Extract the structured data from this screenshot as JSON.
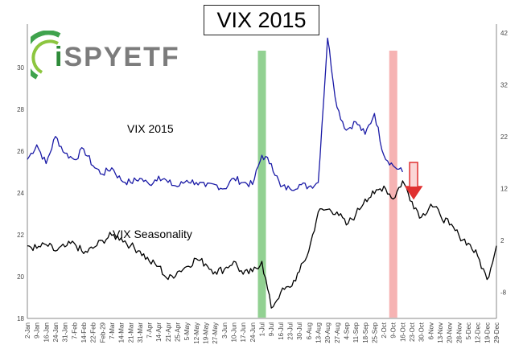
{
  "title": "VIX 2015",
  "logo": {
    "text_prefix": "i",
    "text_main": "SPYETF"
  },
  "colors": {
    "vix2015": "#1a1aa6",
    "seasonality": "#000000",
    "green_band": "#7fc97f",
    "red_band": "#f4a6a6",
    "arrow": "#e03030"
  },
  "chart_data": {
    "type": "line",
    "title": "VIX 2015",
    "x_labels": [
      "2-Jan",
      "9-Jan",
      "16-Jan",
      "24-Jan",
      "31-Jan",
      "7-Feb",
      "14-Feb",
      "22-Feb",
      "Feb-29",
      "7-Mar",
      "14-Mar",
      "21-Mar",
      "31-Mar",
      "7-Apr",
      "14-Apr",
      "21-Apr",
      "25-Apr",
      "5-May",
      "12-May",
      "19-May",
      "27-May",
      "3-Jun",
      "10-Jun",
      "17-Jun",
      "24-Jun",
      "1-Jul",
      "9-Jul",
      "16-Jul",
      "23-Jul",
      "30-Jul",
      "6-Aug",
      "13-Aug",
      "20-Aug",
      "27-Aug",
      "4-Sep",
      "11-Sep",
      "18-Sep",
      "25-Sep",
      "2-Oct",
      "9-Oct",
      "16-Oct",
      "23-Oct",
      "30-Oct",
      "6-Nov",
      "13-Nov",
      "20-Nov",
      "28-Nov",
      "5-Dec",
      "12-Dec",
      "19-Dec",
      "29-Dec"
    ],
    "left_axis": {
      "ticks": [
        18,
        20,
        22,
        24,
        26,
        28,
        30
      ],
      "ylim": [
        18,
        31.8
      ]
    },
    "right_axis": {
      "ticks": [
        -8,
        2,
        12,
        22,
        32,
        42
      ],
      "ylim": [
        -13,
        42.6
      ]
    },
    "series": [
      {
        "name": "VIX 2015",
        "axis": "left",
        "values": [
          25.6,
          26.3,
          25.4,
          26.7,
          25.9,
          25.6,
          26.1,
          25.3,
          24.9,
          25.2,
          24.6,
          24.5,
          24.7,
          24.4,
          24.8,
          24.5,
          24.3,
          24.6,
          24.5,
          24.3,
          24.4,
          24.2,
          24.7,
          24.5,
          24.4,
          25.8,
          25.4,
          24.3,
          24.2,
          24.4,
          24.3,
          24.5,
          31.4,
          28.1,
          27.0,
          27.4,
          26.8,
          27.8,
          25.8,
          25.3,
          25.0,
          null,
          null,
          null,
          null,
          null,
          null,
          null,
          null,
          null,
          null
        ]
      },
      {
        "name": "VIX Seasonality",
        "axis": "right",
        "values": [
          1.0,
          0.5,
          1.2,
          0.0,
          0.8,
          1.5,
          -0.5,
          0.5,
          2.0,
          3.0,
          2.5,
          1.0,
          0.0,
          -2.0,
          -3.0,
          -5.5,
          -4.0,
          -3.0,
          -1.5,
          -2.5,
          -4.0,
          -3.5,
          -2.0,
          -4.5,
          -4.0,
          -2.0,
          -11.0,
          -8.0,
          -7.0,
          -4.0,
          0.0,
          7.5,
          8.0,
          7.5,
          5.0,
          7.0,
          10.0,
          11.0,
          12.5,
          10.0,
          13.5,
          9.5,
          6.5,
          9.0,
          7.0,
          5.0,
          3.0,
          1.5,
          -1.0,
          -5.5,
          1.0
        ]
      }
    ],
    "annotations": [
      "VIX 2015",
      "VIX Seasonality"
    ],
    "grid": false,
    "highlights": [
      {
        "color": "green",
        "x_label": "1-Jul"
      },
      {
        "color": "red",
        "x_label": "9-Oct"
      }
    ]
  }
}
